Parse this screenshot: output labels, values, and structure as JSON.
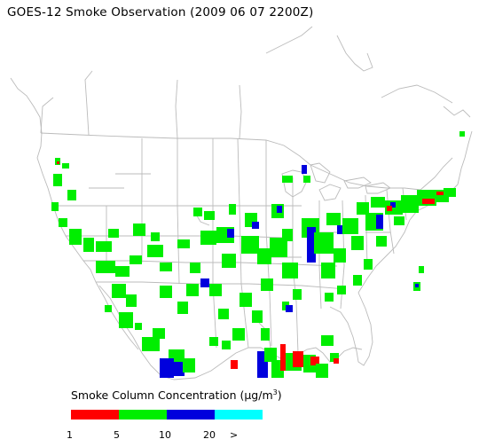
{
  "title": "GOES-12 Smoke Observation (2009 06 07  2200Z)",
  "legend": {
    "label_prefix": "Smoke Column Concentration (",
    "unit": "μg/m",
    "unit_exponent": "3",
    "label_suffix": ")",
    "colors": [
      "#ff0000",
      "#00ee00",
      "#0000dd",
      "#00ffff"
    ],
    "ticks": [
      "1",
      "5",
      "10",
      "20",
      ">"
    ]
  },
  "map": {
    "region": "United States, southern Canada and northern Mexico",
    "smoke_colors": {
      "low": "#00ee00",
      "medium": "#0000dd",
      "trace": "#ff0000"
    },
    "boundary_color": "#bbbbbb"
  }
}
